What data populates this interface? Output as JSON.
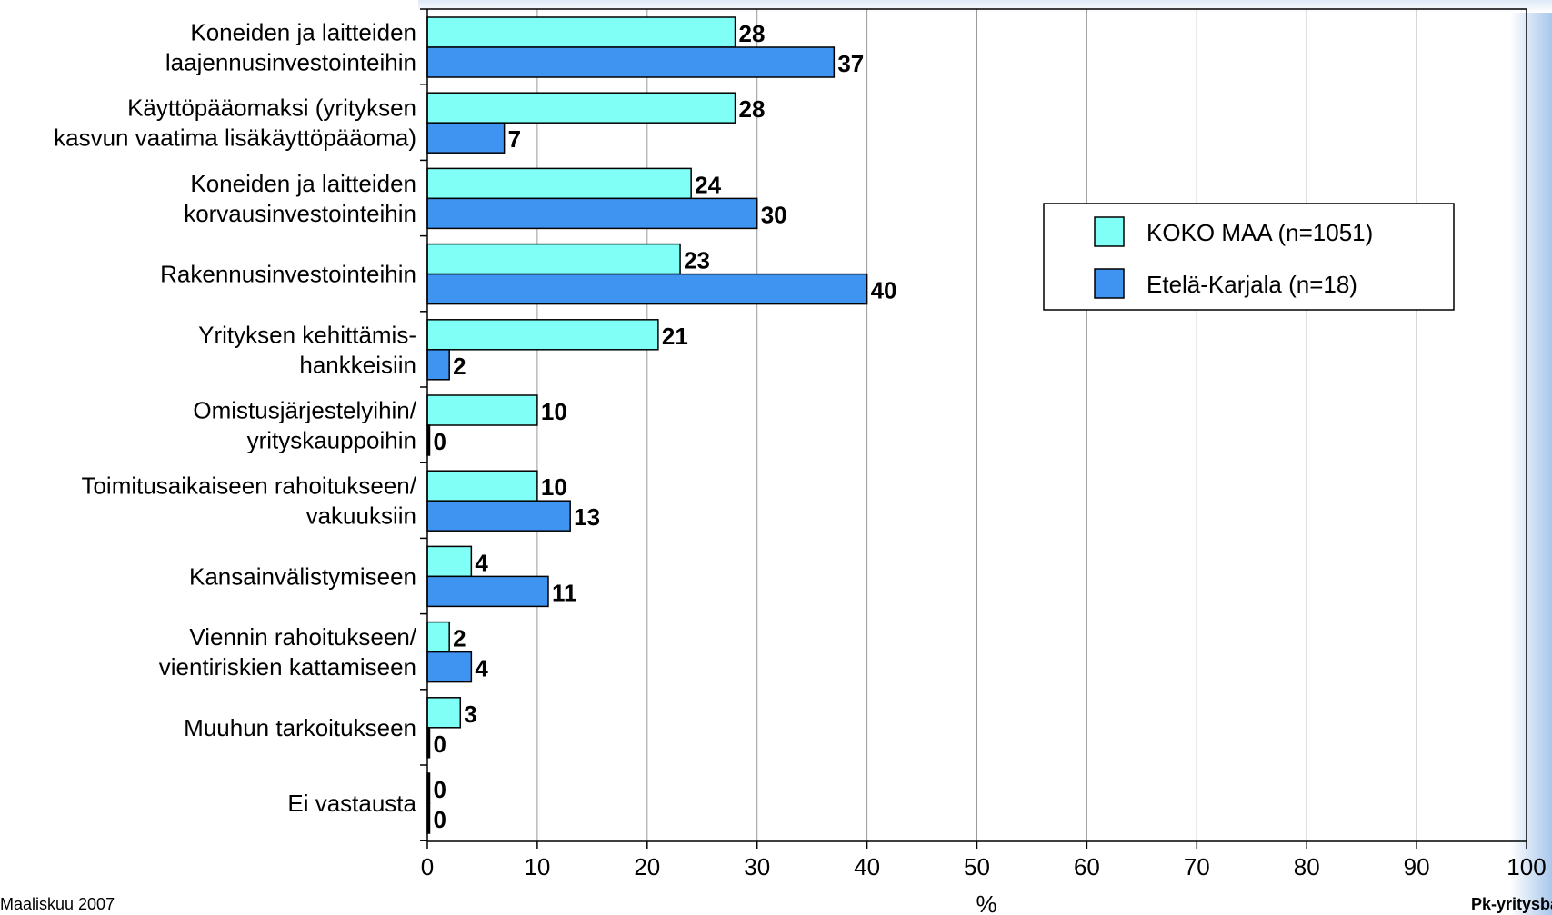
{
  "chart_data": {
    "type": "bar",
    "orientation": "horizontal",
    "categories": [
      [
        "Koneiden ja laitteiden",
        "laajennusinvestointeihin"
      ],
      [
        "Käyttöpääomaksi (yrityksen",
        "kasvun vaatima lisäkäyttöpääoma)"
      ],
      [
        "Koneiden ja laitteiden",
        "korvausinvestointeihin"
      ],
      [
        "Rakennusinvestointeihin"
      ],
      [
        "Yrityksen kehittämis-",
        "hankkeisiin"
      ],
      [
        "Omistusjärjestelyihin/",
        "yrityskauppoihin"
      ],
      [
        "Toimitusaikaiseen rahoitukseen/",
        "vakuuksiin"
      ],
      [
        "Kansainvälistymiseen"
      ],
      [
        "Viennin rahoitukseen/",
        "vientiriskien kattamiseen"
      ],
      [
        "Muuhun tarkoitukseen"
      ],
      [
        "Ei vastausta"
      ]
    ],
    "series": [
      {
        "name": "KOKO MAA (n=1051)",
        "color": "#7ffff6",
        "values": [
          28,
          28,
          24,
          23,
          21,
          10,
          10,
          4,
          2,
          3,
          0
        ]
      },
      {
        "name": "Etelä-Karjala (n=18)",
        "color": "#3f94f2",
        "values": [
          37,
          7,
          30,
          40,
          2,
          0,
          13,
          11,
          4,
          0,
          0
        ]
      }
    ],
    "xlabel": "%",
    "xlim": [
      0,
      100
    ],
    "xticks": [
      0,
      10,
      20,
      30,
      40,
      50,
      60,
      70,
      80,
      90,
      100
    ],
    "grid": "vertical",
    "legend_position": "right",
    "data_labels": true
  },
  "footer": {
    "date": "Maaliskuu 2007",
    "source": "Pk-yritysbarometri"
  }
}
